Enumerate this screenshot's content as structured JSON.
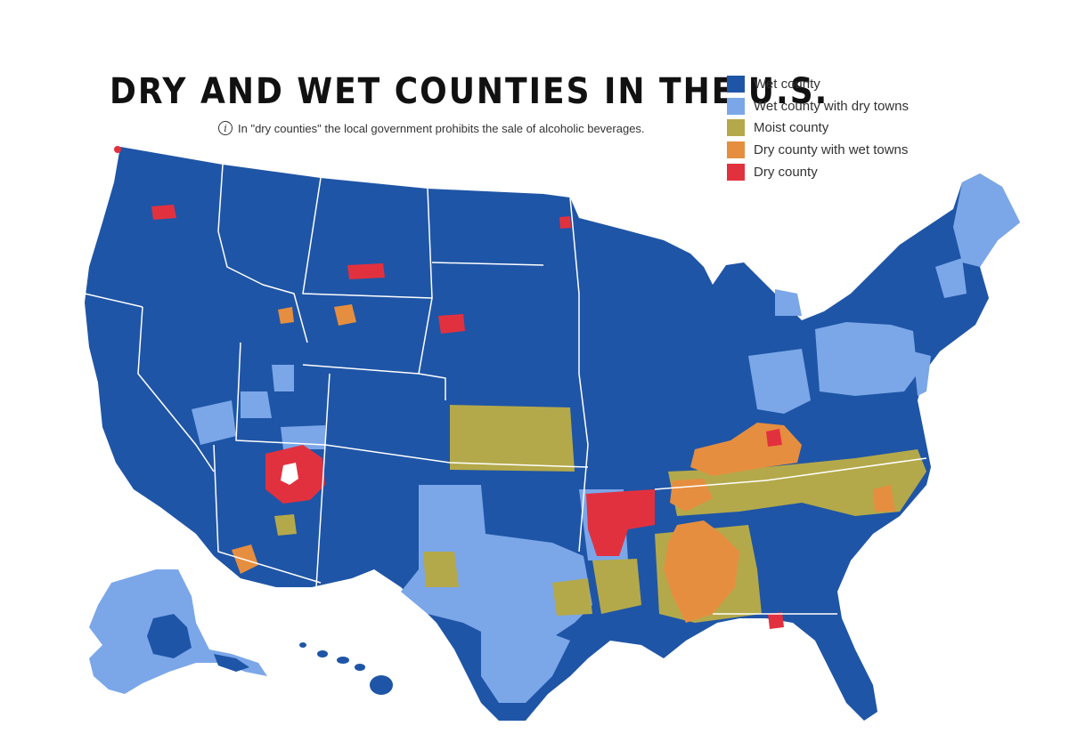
{
  "title": "DRY AND WET COUNTIES IN THE U.S.",
  "subtitle": {
    "icon": "info-icon",
    "text": "In \"dry counties\" the local government prohibits the sale of alcoholic beverages."
  },
  "legend": [
    {
      "key": "wet",
      "label": "Wet county",
      "color": "#1f55a6"
    },
    {
      "key": "wet_dry_towns",
      "label": "Wet county with dry towns",
      "color": "#7ba7e9"
    },
    {
      "key": "moist",
      "label": "Moist county",
      "color": "#b4a94a"
    },
    {
      "key": "dry_wet_towns",
      "label": "Dry county with wet towns",
      "color": "#e68e3f"
    },
    {
      "key": "dry",
      "label": "Dry county",
      "color": "#e2313e"
    }
  ]
}
